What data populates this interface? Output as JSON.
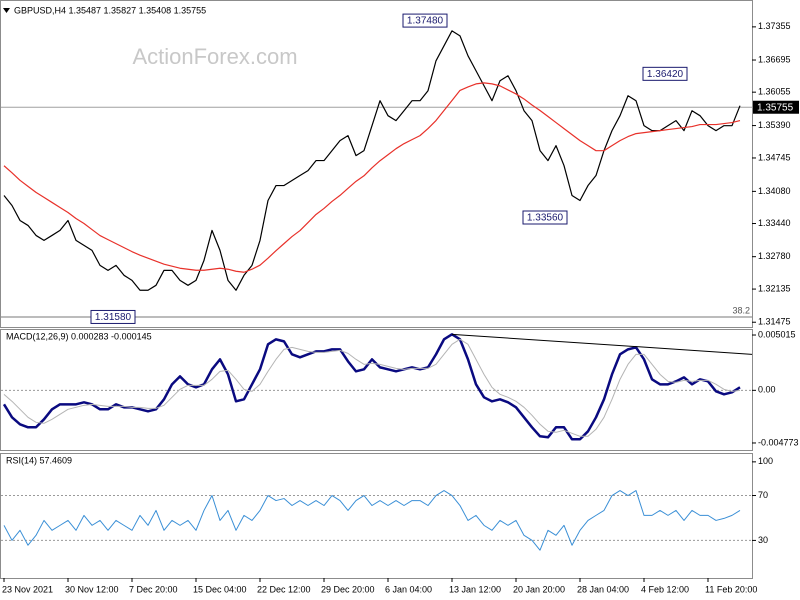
{
  "chart_data": [
    {
      "type": "line",
      "title": "GBPUSD,H4  1.35487 1.35827 1.35408 1.35755",
      "watermark": "ActionForex.com",
      "series": [
        {
          "color": "#000000",
          "values": [
            1.33998,
            1.33799,
            1.33501,
            1.33402,
            1.33203,
            1.33104,
            1.33203,
            1.33303,
            1.33501,
            1.33104,
            1.33005,
            1.32905,
            1.32607,
            1.32508,
            1.32607,
            1.32409,
            1.32309,
            1.32111,
            1.32111,
            1.3221,
            1.32508,
            1.32508,
            1.32309,
            1.3221,
            1.32309,
            1.32707,
            1.33303,
            1.32905,
            1.32309,
            1.32111,
            1.32409,
            1.32607,
            1.33104,
            1.33898,
            1.34196,
            1.34196,
            1.34296,
            1.34395,
            1.34494,
            1.34693,
            1.34693,
            1.34892,
            1.3509,
            1.3519,
            1.34792,
            1.34892,
            1.35388,
            1.35885,
            1.35587,
            1.35488,
            1.35686,
            1.35885,
            1.35885,
            1.36084,
            1.3668,
            1.36978,
            1.37276,
            1.37176,
            1.36779,
            1.36481,
            1.36183,
            1.35885,
            1.36282,
            1.36382,
            1.36084,
            1.35686,
            1.35488,
            1.34892,
            1.34693,
            1.34991,
            1.34594,
            1.33998,
            1.33898,
            1.34196,
            1.34395,
            1.34892,
            1.35289,
            1.35587,
            1.35984,
            1.35885,
            1.35388,
            1.35289,
            1.35289,
            1.35388,
            1.35488,
            1.35289,
            1.35686,
            1.35587,
            1.35388,
            1.35289,
            1.35388,
            1.35388,
            1.35786
          ]
        },
        {
          "color": "#e8312a",
          "values": [
            1.3459,
            1.3445,
            1.343,
            1.3418,
            1.3406,
            1.3396,
            1.3386,
            1.3376,
            1.3366,
            1.3354,
            1.3344,
            1.3332,
            1.332,
            1.3312,
            1.3304,
            1.3296,
            1.3288,
            1.3281,
            1.3275,
            1.3269,
            1.3263,
            1.3259,
            1.3255,
            1.3253,
            1.3251,
            1.3251,
            1.3253,
            1.3255,
            1.3253,
            1.3249,
            1.3247,
            1.3253,
            1.3261,
            1.3275,
            1.329,
            1.3304,
            1.3318,
            1.333,
            1.3346,
            1.3362,
            1.3374,
            1.3388,
            1.34,
            1.3414,
            1.3428,
            1.3439,
            1.3455,
            1.3469,
            1.3481,
            1.3493,
            1.3503,
            1.3511,
            1.3519,
            1.3533,
            1.3549,
            1.3569,
            1.3589,
            1.3609,
            1.3616,
            1.3622,
            1.3624,
            1.3622,
            1.3618,
            1.361,
            1.3602,
            1.3592,
            1.358,
            1.3569,
            1.3557,
            1.3545,
            1.3533,
            1.3521,
            1.3509,
            1.3499,
            1.3489,
            1.3489,
            1.3499,
            1.3509,
            1.3517,
            1.3523,
            1.3525,
            1.3527,
            1.3529,
            1.3531,
            1.3533,
            1.3535,
            1.3537,
            1.3541,
            1.3541,
            1.3541,
            1.3543,
            1.3545,
            1.3549
          ]
        }
      ],
      "ylim": [
        1.3138,
        1.3787
      ],
      "yticks": [
        1.37355,
        1.36695,
        1.36055,
        {
          "value": 1.3539,
          "label": "1.35390"
        },
        1.34745,
        {
          "value": 1.3408,
          "label": "1.34080"
        },
        {
          "value": 1.3344,
          "label": "1.33440"
        },
        {
          "value": 1.3278,
          "label": "1.32780"
        },
        1.32135,
        1.31475
      ],
      "last_price": 1.35755,
      "fib_price": 1.3158,
      "fib_level": 38.2,
      "annotations": [
        {
          "label": "1.37480",
          "value": 1.3748,
          "index": 56
        },
        {
          "label": "1.33560",
          "value": 1.3356,
          "index": 71
        },
        {
          "label": "1.36420",
          "value": 1.3642,
          "index": 86
        },
        {
          "label": "1.31580",
          "value": 1.3158,
          "index": 17
        }
      ]
    },
    {
      "type": "line",
      "title": "MACD(12,26,9) 0.000283 -0.000145",
      "series": [
        {
          "color": "#0a0a80",
          "width": 2.5,
          "values": [
            -0.001268,
            -0.002446,
            -0.00308,
            -0.003352,
            -0.003352,
            -0.002627,
            -0.001721,
            -0.001268,
            -0.001268,
            -0.001268,
            -0.001087,
            -0.001268,
            -0.001721,
            -0.001721,
            -0.001268,
            -0.00154,
            -0.00154,
            -0.001721,
            -0.001903,
            -0.001721,
            -0.000815,
            0.000544,
            0.001268,
            0.000544,
            0.000272,
            0.000544,
            0.001903,
            0.002809,
            0.00145,
            -0.000997,
            -0.000815,
            0.000544,
            0.001903,
            0.004168,
            0.004621,
            0.004439,
            0.003262,
            0.00299,
            0.003262,
            0.003533,
            0.003533,
            0.003715,
            0.003715,
            0.002627,
            0.001721,
            0.001903,
            0.002809,
            0.002084,
            0.001903,
            0.001721,
            0.001903,
            0.002084,
            0.001903,
            0.002084,
            0.003262,
            0.004621,
            0.005074,
            0.004621,
            0.002809,
            0.000544,
            -0.000634,
            -0.000997,
            -0.000815,
            -0.001087,
            -0.00154,
            -0.002446,
            -0.003352,
            -0.004168,
            -0.004258,
            -0.003352,
            -0.003352,
            -0.004439,
            -0.004439,
            -0.003715,
            -0.002446,
            -0.000815,
            0.00145,
            0.003262,
            0.003715,
            0.003896,
            0.002809,
            0.000997,
            0.000544,
            0.000544,
            0.000815,
            0.001178,
            0.000544,
            0.000997,
            0.000815,
            -9.1e-05,
            -0.000362,
            -0.000181,
            0.000272
          ]
        },
        {
          "color": "#b4b4b4",
          "width": 1,
          "values": [
            -0.000362,
            -0.000997,
            -0.001721,
            -0.002446,
            -0.002899,
            -0.00299,
            -0.002627,
            -0.002174,
            -0.001721,
            -0.00154,
            -0.001359,
            -0.001268,
            -0.001359,
            -0.00145,
            -0.00145,
            -0.00145,
            -0.00154,
            -0.00154,
            -0.001631,
            -0.001631,
            -0.001359,
            -0.000634,
            9.1e-05,
            0.000453,
            0.000453,
            0.000453,
            0.000997,
            0.001721,
            0.001812,
            0.000997,
            9.1e-05,
            -9.1e-05,
            0.000544,
            0.001721,
            0.002809,
            0.003715,
            0.003896,
            0.003715,
            0.003533,
            0.003443,
            0.003443,
            0.003533,
            0.003624,
            0.003352,
            0.002809,
            0.002356,
            0.002446,
            0.002356,
            0.002174,
            0.001993,
            0.001903,
            0.001993,
            0.001993,
            0.001993,
            0.002356,
            0.003262,
            0.004168,
            0.004621,
            0.004168,
            0.002809,
            0.00145,
            0.000272,
            -0.000362,
            -0.000634,
            -0.000997,
            -0.00154,
            -0.002265,
            -0.00308,
            -0.003715,
            -0.003805,
            -0.003624,
            -0.003896,
            -0.004168,
            -0.004168,
            -0.003533,
            -0.002446,
            -0.000815,
            0.000997,
            0.002356,
            0.003262,
            0.003262,
            0.002356,
            0.00145,
            0.000815,
            0.000725,
            0.000906,
            0.000815,
            0.000906,
            0.000906,
            0.000544,
            9.1e-05,
            -9.1e-05,
            0
          ]
        }
      ],
      "ylim": [
        -0.00541,
        0.00547
      ],
      "yticks": [
        0.005015,
        {
          "value": 0,
          "label": "0.00"
        },
        -0.004773
      ],
      "levels": [
        0
      ],
      "trendline": {
        "x": [
          56,
          93.5
        ],
        "y": [
          0.005074,
          0.003262
        ]
      }
    },
    {
      "type": "line",
      "title": "RSI(14) 57.4609",
      "categories": [
        "23 Nov 2021",
        null,
        null,
        null,
        null,
        null,
        null,
        null,
        "30 Nov 12:00",
        null,
        null,
        null,
        null,
        null,
        null,
        null,
        "7 Dec 20:00",
        null,
        null,
        null,
        null,
        null,
        null,
        null,
        "15 Dec 04:00",
        null,
        null,
        null,
        null,
        null,
        null,
        null,
        "22 Dec 12:00",
        null,
        null,
        null,
        null,
        null,
        null,
        null,
        "29 Dec 20:00",
        null,
        null,
        null,
        null,
        null,
        null,
        null,
        "6 Jan 04:00",
        null,
        null,
        null,
        null,
        null,
        null,
        null,
        "13 Jan 12:00",
        null,
        null,
        null,
        null,
        null,
        null,
        null,
        "20 Jan 20:00",
        null,
        null,
        null,
        null,
        null,
        null,
        null,
        "28 Jan 04:00",
        null,
        null,
        null,
        null,
        null,
        null,
        null,
        "4 Feb 12:00",
        null,
        null,
        null,
        null,
        null,
        null,
        null,
        "11 Feb 20:00",
        null,
        null,
        null,
        null
      ],
      "series": [
        {
          "color": "#3a8fd6",
          "width": 1,
          "values": [
            43.4,
            30.1,
            39.0,
            25.7,
            34.5,
            47.8,
            39.0,
            43.4,
            47.8,
            39.0,
            52.3,
            43.4,
            47.8,
            39.0,
            47.8,
            43.4,
            39.0,
            52.3,
            43.4,
            56.7,
            39.0,
            47.8,
            43.4,
            47.8,
            39.0,
            56.7,
            70.0,
            47.8,
            56.7,
            39.0,
            52.3,
            47.8,
            56.7,
            70.0,
            65.5,
            67.3,
            61.1,
            65.5,
            61.1,
            65.5,
            61.1,
            70.0,
            65.5,
            56.7,
            65.5,
            70.0,
            61.1,
            65.5,
            61.1,
            65.5,
            61.1,
            65.5,
            65.5,
            61.1,
            70.0,
            74.4,
            70.0,
            61.1,
            47.8,
            52.3,
            43.4,
            39.0,
            47.8,
            43.4,
            47.8,
            34.5,
            30.1,
            21.3,
            39.0,
            34.5,
            43.4,
            25.7,
            39.0,
            47.8,
            52.3,
            56.7,
            70.0,
            74.4,
            70.0,
            74.4,
            52.3,
            52.3,
            56.7,
            52.3,
            56.7,
            47.8,
            56.7,
            52.3,
            52.3,
            47.8,
            49.6,
            52.3,
            56.7
          ]
        }
      ],
      "ylim": [
        -3.5,
        107
      ],
      "yticks": [
        100,
        70,
        30
      ],
      "levels": [
        30,
        70
      ]
    }
  ]
}
